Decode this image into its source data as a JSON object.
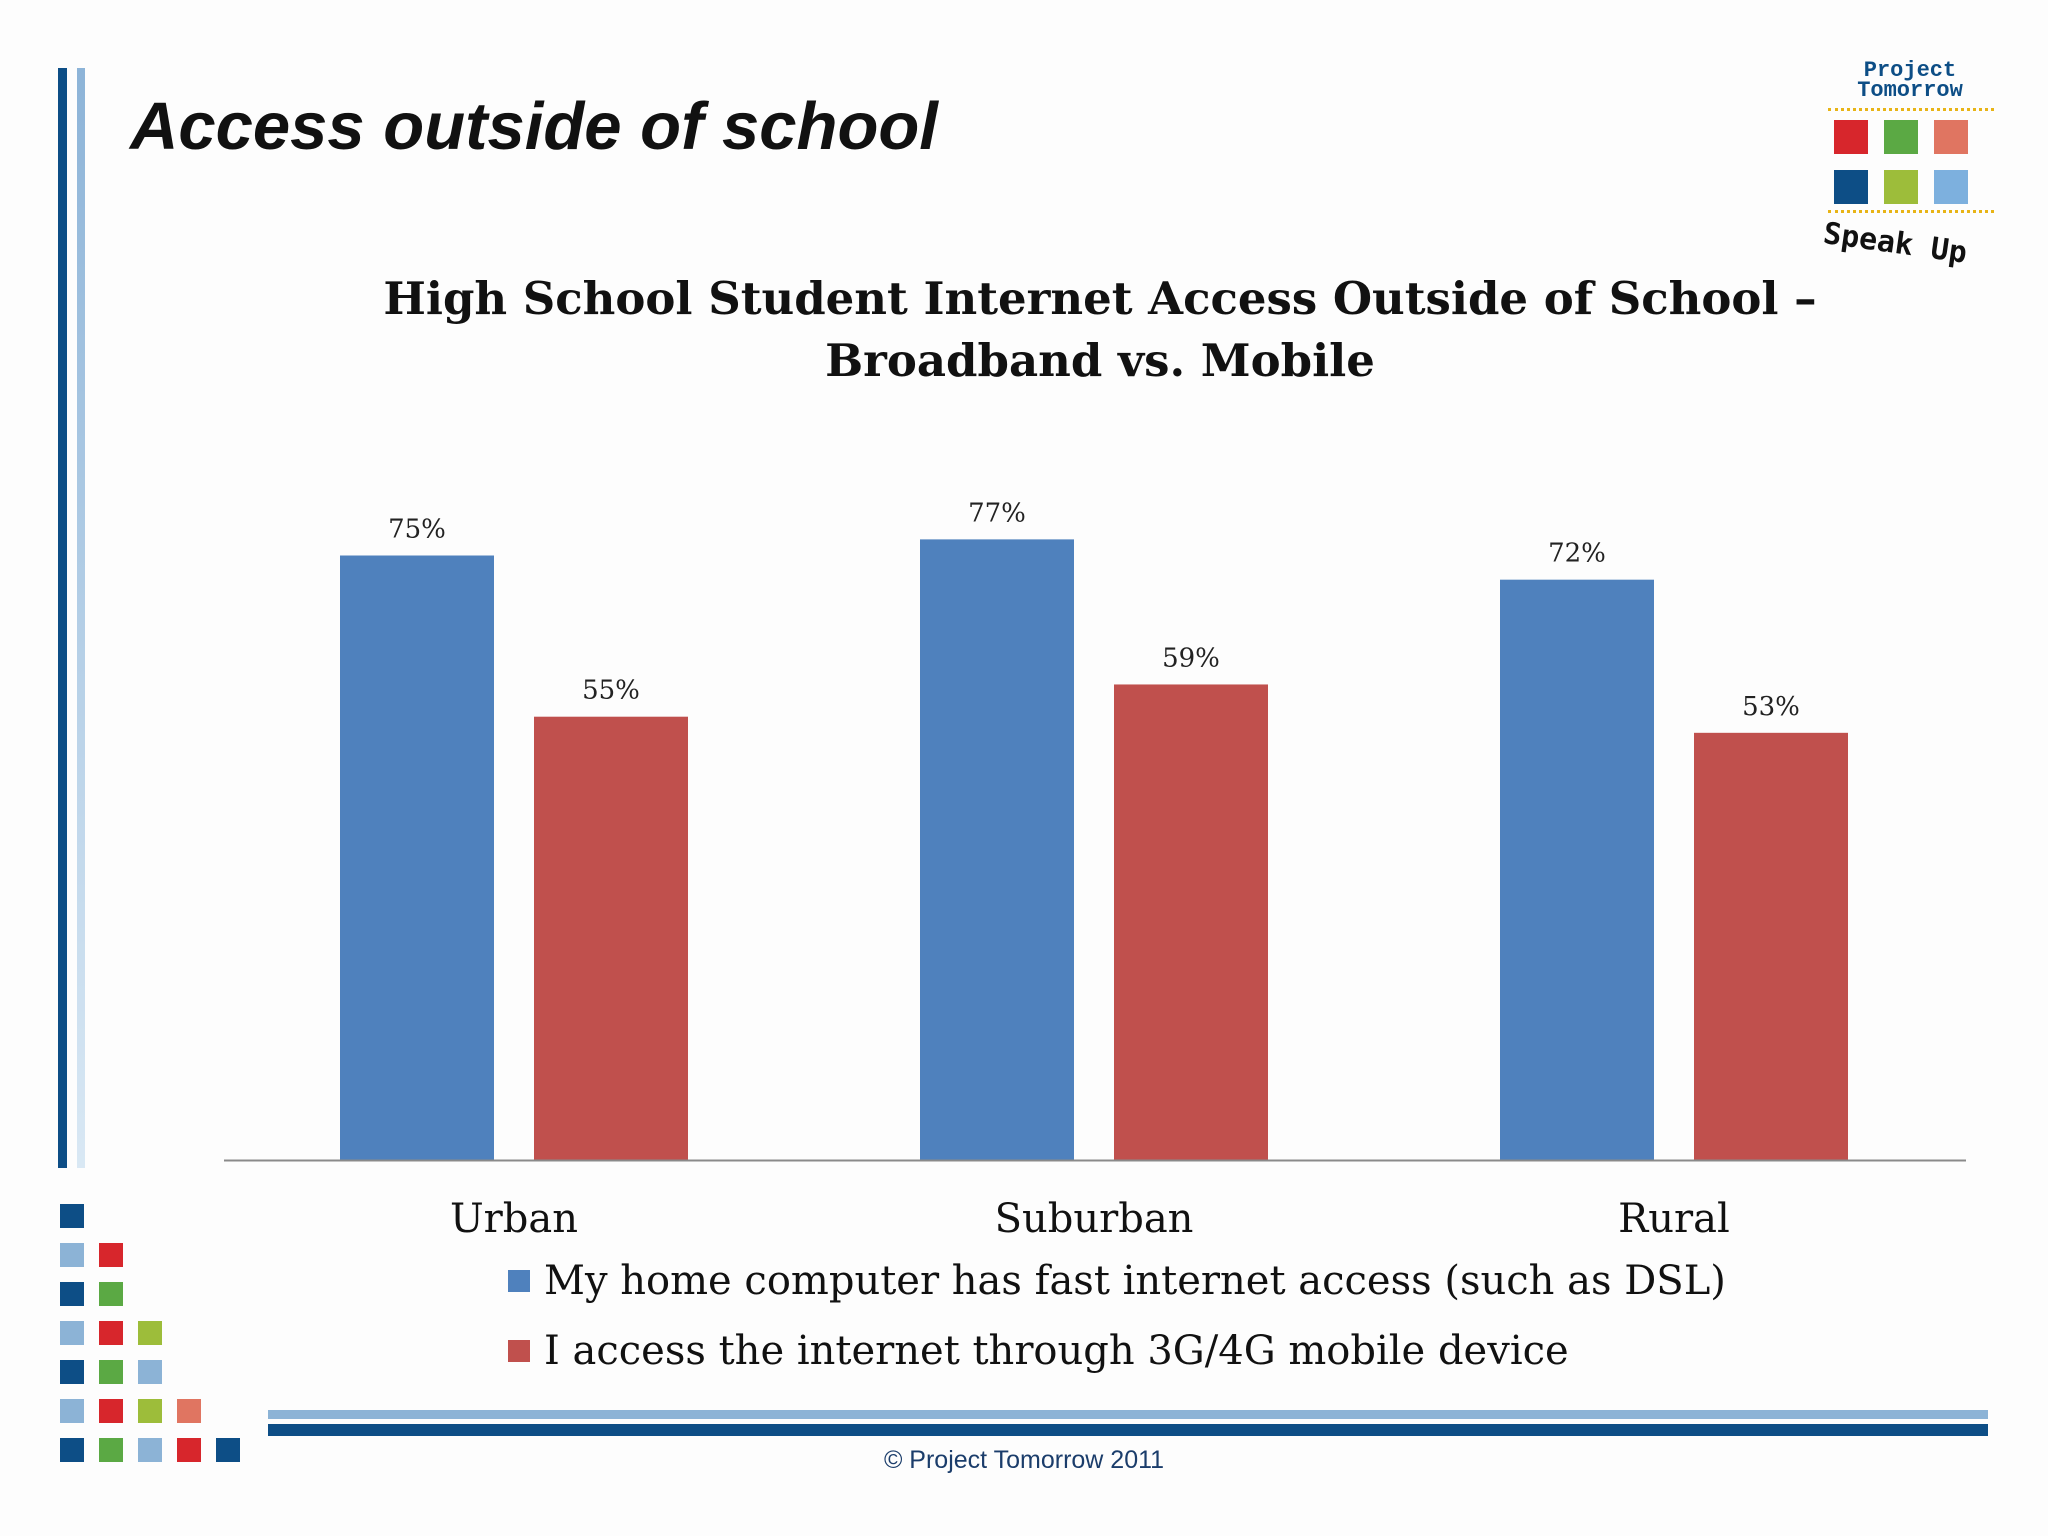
{
  "slide": {
    "title": "Access outside of school",
    "footer": "© Project Tomorrow 2011"
  },
  "logo": {
    "line1": "Project",
    "line2": "Tomorrow",
    "tagline": "Speak Up",
    "colors": [
      "#d7262c",
      "#5ba944",
      "#e07561",
      "#0d4e86",
      "#9dbd3a",
      "#7db0de"
    ]
  },
  "colors": {
    "series1": "#4f81bd",
    "series2": "#c0504d",
    "accent_dark": "#0d4e86",
    "accent_light": "#8cb3d6"
  },
  "chart_data": {
    "type": "bar",
    "title_line1": "High School Student Internet Access Outside of School –",
    "title_line2": "Broadband vs. Mobile",
    "categories": [
      "Urban",
      "Suburban",
      "Rural"
    ],
    "series": [
      {
        "name": "My home computer has fast internet access (such as DSL)",
        "values": [
          75,
          77,
          72
        ]
      },
      {
        "name": "I access the internet through 3G/4G mobile device",
        "values": [
          55,
          59,
          53
        ]
      }
    ],
    "value_labels": [
      [
        "75%",
        "77%",
        "72%"
      ],
      [
        "55%",
        "59%",
        "53%"
      ]
    ],
    "ylim": [
      0,
      100
    ],
    "unit": "%",
    "grid": false,
    "legend": "bottom"
  }
}
